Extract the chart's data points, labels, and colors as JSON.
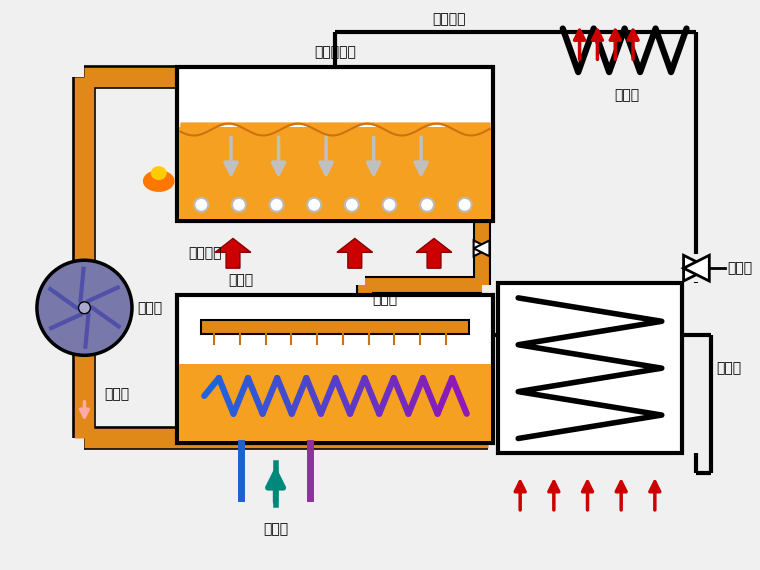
{
  "bg_color": "#f0f0f0",
  "labels": {
    "steam_gen": "蒸汽发生器",
    "condenser": "冷凝器",
    "throttle": "节流阀",
    "evaporator": "蒸发器",
    "absorber": "吸收器",
    "pump": "循环泵",
    "dilute": "稀溶液",
    "concentrated": "浓溶液",
    "heating": "加热过程",
    "cooling_water": "冷却水",
    "refrigerant": "制冷工质"
  },
  "colors": {
    "orange": "#F5A020",
    "dark_orange": "#D07010",
    "pipe_orange": "#E08818",
    "red": "#CC0000",
    "teal": "#00897B",
    "blue": "#2060CC",
    "purple": "#9030A0",
    "white": "#FFFFFF",
    "gray_arrow": "#A0A0A0",
    "black": "#000000",
    "pump_fill": "#7878AA",
    "pump_blade": "#5050AA"
  }
}
